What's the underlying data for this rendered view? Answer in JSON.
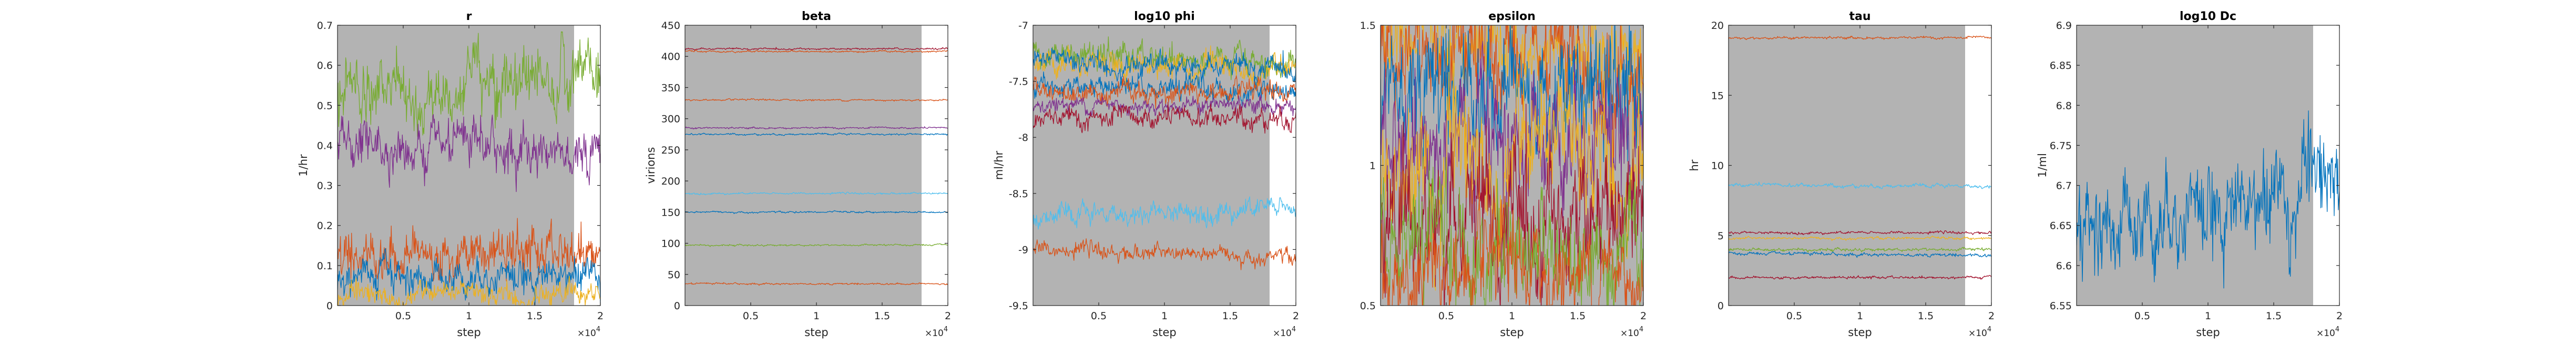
{
  "figure": {
    "background": "#ffffff",
    "burnin_shade": "#b3b3b3"
  },
  "chart_data": [
    {
      "type": "line",
      "title": "r",
      "ylabel": "1/hr",
      "xlabel": "step",
      "xlim": [
        0,
        20000
      ],
      "ylim": [
        0,
        0.7
      ],
      "burnin_end": 18000,
      "x_exponent": "4",
      "xticks": [
        5000,
        10000,
        15000,
        20000
      ],
      "xtick_labels": [
        "0.5",
        "1",
        "1.5",
        "2"
      ],
      "yticks": [
        0,
        0.1,
        0.2,
        0.3,
        0.4,
        0.5,
        0.6,
        0.7
      ],
      "ytick_labels": [
        "0",
        "0.1",
        "0.2",
        "0.3",
        "0.4",
        "0.5",
        "0.6",
        "0.7"
      ],
      "series": [
        {
          "color": "#77ac30",
          "start": 0.53,
          "end": 0.56,
          "noise": 0.035
        },
        {
          "color": "#7e2f8e",
          "start": 0.4,
          "end": 0.39,
          "noise": 0.025
        },
        {
          "color": "#d95319",
          "start": 0.13,
          "end": 0.13,
          "noise": 0.025
        },
        {
          "color": "#0072bd",
          "start": 0.07,
          "end": 0.08,
          "noise": 0.018
        },
        {
          "color": "#edb120",
          "start": 0.02,
          "end": 0.03,
          "noise": 0.012
        }
      ]
    },
    {
      "type": "line",
      "title": "beta",
      "ylabel": "virions",
      "xlabel": "step",
      "xlim": [
        0,
        20000
      ],
      "ylim": [
        0,
        450
      ],
      "burnin_end": 18000,
      "x_exponent": "4",
      "xticks": [
        5000,
        10000,
        15000,
        20000
      ],
      "xtick_labels": [
        "0.5",
        "1",
        "1.5",
        "2"
      ],
      "yticks": [
        0,
        50,
        100,
        150,
        200,
        250,
        300,
        350,
        400,
        450
      ],
      "ytick_labels": [
        "0",
        "50",
        "100",
        "150",
        "200",
        "250",
        "300",
        "350",
        "400",
        "450"
      ],
      "series": [
        {
          "color": "#a2142f",
          "start": 412,
          "end": 412,
          "noise": 0.6
        },
        {
          "color": "#d95319",
          "start": 408,
          "end": 408,
          "noise": 0.6
        },
        {
          "color": "#d95319",
          "start": 330,
          "end": 330,
          "noise": 0.6
        },
        {
          "color": "#7e2f8e",
          "start": 285,
          "end": 285,
          "noise": 0.6
        },
        {
          "color": "#0072bd",
          "start": 275,
          "end": 275,
          "noise": 0.6
        },
        {
          "color": "#4dbeee",
          "start": 180,
          "end": 180,
          "noise": 0.6
        },
        {
          "color": "#0072bd",
          "start": 150,
          "end": 150,
          "noise": 0.6
        },
        {
          "color": "#77ac30",
          "start": 97,
          "end": 97,
          "noise": 0.6
        },
        {
          "color": "#d95319",
          "start": 35,
          "end": 35,
          "noise": 0.6
        }
      ]
    },
    {
      "type": "line",
      "title": "log10 phi",
      "ylabel": "ml/hr",
      "xlabel": "step",
      "xlim": [
        0,
        20000
      ],
      "ylim": [
        -9.5,
        -7
      ],
      "burnin_end": 18000,
      "x_exponent": "4",
      "xticks": [
        5000,
        10000,
        15000,
        20000
      ],
      "xtick_labels": [
        "0.5",
        "1",
        "1.5",
        "2"
      ],
      "yticks": [
        -9.5,
        -9,
        -8.5,
        -8,
        -7.5,
        -7
      ],
      "ytick_labels": [
        "-9.5",
        "-9",
        "-8.5",
        "-8",
        "-7.5",
        "-7"
      ],
      "series": [
        {
          "color": "#77ac30",
          "start": -7.25,
          "end": -7.35,
          "noise": 0.05
        },
        {
          "color": "#edb120",
          "start": -7.3,
          "end": -7.42,
          "noise": 0.05
        },
        {
          "color": "#0072bd",
          "start": -7.32,
          "end": -7.4,
          "noise": 0.04
        },
        {
          "color": "#0072bd",
          "start": -7.55,
          "end": -7.58,
          "noise": 0.04
        },
        {
          "color": "#d95319",
          "start": -7.58,
          "end": -7.62,
          "noise": 0.04
        },
        {
          "color": "#7e2f8e",
          "start": -7.7,
          "end": -7.72,
          "noise": 0.03
        },
        {
          "color": "#a2142f",
          "start": -7.85,
          "end": -7.82,
          "noise": 0.04
        },
        {
          "color": "#4dbeee",
          "start": -8.72,
          "end": -8.62,
          "noise": 0.04
        },
        {
          "color": "#d95319",
          "start": -9.0,
          "end": -9.07,
          "noise": 0.03
        }
      ]
    },
    {
      "type": "line",
      "title": "epsilon",
      "ylabel": "",
      "xlabel": "step",
      "xlim": [
        0,
        20000
      ],
      "ylim": [
        0.5,
        1.5
      ],
      "burnin_end": 20000,
      "x_exponent": "4",
      "xticks": [
        5000,
        10000,
        15000,
        20000
      ],
      "xtick_labels": [
        "0.5",
        "1",
        "1.5",
        "2"
      ],
      "yticks": [
        0.5,
        1,
        1.5
      ],
      "ytick_labels": [
        "0.5",
        "1",
        "1.5"
      ],
      "series": [
        {
          "color": "#edb120",
          "start": 1.45,
          "end": 1.4,
          "noise": 0.06
        },
        {
          "color": "#d95319",
          "start": 1.42,
          "end": 1.3,
          "noise": 0.08
        },
        {
          "color": "#0072bd",
          "start": 1.32,
          "end": 1.25,
          "noise": 0.09
        },
        {
          "color": "#7e2f8e",
          "start": 1.05,
          "end": 1.15,
          "noise": 0.09
        },
        {
          "color": "#edb120",
          "start": 0.95,
          "end": 1.05,
          "noise": 0.1
        },
        {
          "color": "#a2142f",
          "start": 0.78,
          "end": 0.8,
          "noise": 0.1
        },
        {
          "color": "#77ac30",
          "start": 0.72,
          "end": 0.7,
          "noise": 0.08
        },
        {
          "color": "#d95319",
          "start": 0.6,
          "end": 0.62,
          "noise": 0.07
        }
      ]
    },
    {
      "type": "line",
      "title": "tau",
      "ylabel": "hr",
      "xlabel": "step",
      "xlim": [
        0,
        20000
      ],
      "ylim": [
        0,
        20
      ],
      "burnin_end": 18000,
      "x_exponent": "4",
      "xticks": [
        5000,
        10000,
        15000,
        20000
      ],
      "xtick_labels": [
        "0.5",
        "1",
        "1.5",
        "2"
      ],
      "yticks": [
        0,
        5,
        10,
        15,
        20
      ],
      "ytick_labels": [
        "0",
        "5",
        "10",
        "15",
        "20"
      ],
      "series": [
        {
          "color": "#d95319",
          "start": 19.1,
          "end": 19.1,
          "noise": 0.04
        },
        {
          "color": "#4dbeee",
          "start": 8.6,
          "end": 8.5,
          "noise": 0.06
        },
        {
          "color": "#a2142f",
          "start": 5.2,
          "end": 5.2,
          "noise": 0.04
        },
        {
          "color": "#edb120",
          "start": 4.8,
          "end": 4.8,
          "noise": 0.04
        },
        {
          "color": "#77ac30",
          "start": 4.0,
          "end": 4.0,
          "noise": 0.05
        },
        {
          "color": "#0072bd",
          "start": 3.7,
          "end": 3.6,
          "noise": 0.05
        },
        {
          "color": "#a2142f",
          "start": 2.0,
          "end": 2.0,
          "noise": 0.04
        }
      ]
    },
    {
      "type": "line",
      "title": "log10 Dc",
      "ylabel": "1/ml",
      "xlabel": "step",
      "xlim": [
        0,
        20000
      ],
      "ylim": [
        6.55,
        6.9
      ],
      "burnin_end": 18000,
      "x_exponent": "4",
      "xticks": [
        5000,
        10000,
        15000,
        20000
      ],
      "xtick_labels": [
        "0.5",
        "1",
        "1.5",
        "2"
      ],
      "yticks": [
        6.55,
        6.6,
        6.65,
        6.7,
        6.75,
        6.8,
        6.85,
        6.9
      ],
      "ytick_labels": [
        "6.55",
        "6.6",
        "6.65",
        "6.7",
        "6.75",
        "6.8",
        "6.85",
        "6.9"
      ],
      "series": [
        {
          "color": "#0072bd",
          "start": 6.65,
          "end": 6.7,
          "noise": 0.025
        }
      ]
    }
  ]
}
